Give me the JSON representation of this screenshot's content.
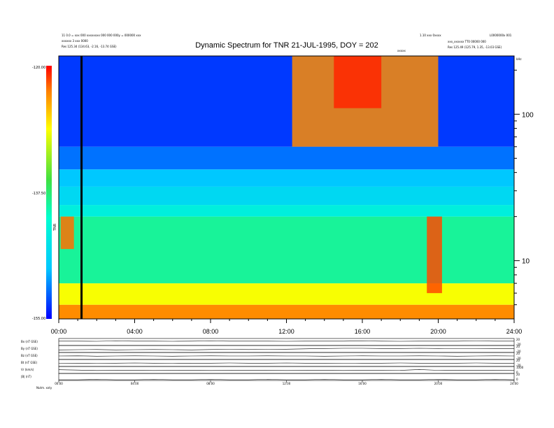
{
  "chart_data": [
    {
      "type": "heatmap",
      "title": "Dynamic Spectrum for TNR 21-JUL-1995, DOY = 202",
      "header_left": [
        "11 0.0 = xxx 000 xxxxxxxx 000 000 000y = 000000 xxx",
        "xxxxxx 3 xxx 0000",
        "Res  125.34 (134.63, -2.16, -13.74 GSE)"
      ],
      "header_right": [
        "1.10 xxx 0xxxx",
        "L0000000x 001",
        "xxx_xxxxxx  TT0 00000 000",
        "Res   125.49 (125.79, 1.35, -13.03 GSE)"
      ],
      "marker_label": "xxxxx",
      "right_unit": "kHz",
      "colorbar_label": "TNR",
      "colorbar_ticks": [
        "-120.00",
        "-137.50",
        "-155.00"
      ],
      "colorbar_range": [
        -155,
        -120
      ],
      "x_ticks": [
        "00:00",
        "04:00",
        "08:00",
        "12:00",
        "16:00",
        "20:00",
        "24:00"
      ],
      "x_range_hours": [
        0,
        24
      ],
      "y_scale": "log",
      "y_ticks": [
        "100",
        "10"
      ],
      "y_range_khz": [
        4,
        250
      ],
      "vertical_marker_hour": 1.2,
      "bands_khz": [
        {
          "from": 4,
          "to": 5,
          "level": -124
        },
        {
          "from": 5,
          "to": 7,
          "level": -129
        },
        {
          "from": 7,
          "to": 20,
          "level": -139
        },
        {
          "from": 20,
          "to": 24,
          "level": -143
        },
        {
          "from": 24,
          "to": 32,
          "level": -146
        },
        {
          "from": 32,
          "to": 42,
          "level": -148
        },
        {
          "from": 42,
          "to": 60,
          "level": -151
        },
        {
          "from": 60,
          "to": 250,
          "level": -153
        }
      ],
      "events": [
        {
          "start_hour": 12.3,
          "end_hour": 20.0,
          "from_khz": 60,
          "to_khz": 250,
          "level": -124
        },
        {
          "start_hour": 14.5,
          "end_hour": 17.0,
          "from_khz": 110,
          "to_khz": 250,
          "level": -121
        },
        {
          "start_hour": 19.4,
          "end_hour": 20.2,
          "from_khz": 6,
          "to_khz": 20,
          "level": -122
        },
        {
          "start_hour": 0.1,
          "end_hour": 0.8,
          "from_khz": 12,
          "to_khz": 20,
          "level": -123
        }
      ]
    },
    {
      "type": "line",
      "panels": [
        {
          "label": "Bx (nT GSE)",
          "right_ticks": [
            "20",
            "-20"
          ],
          "values": [
            5,
            5,
            4,
            6,
            5,
            5,
            4,
            5,
            6,
            5,
            5,
            5,
            4,
            5,
            5,
            5,
            6,
            5,
            4,
            5,
            5,
            5,
            6,
            5,
            5
          ]
        },
        {
          "label": "By (nT GSE)",
          "right_ticks": [
            "20",
            "-20"
          ],
          "values": [
            -5,
            -4,
            -3,
            -5,
            -4,
            -3,
            -4,
            -5,
            -3,
            -2,
            -3,
            -2,
            -1,
            1,
            3,
            4,
            4,
            3,
            3,
            4,
            3,
            2,
            2,
            3,
            3
          ]
        },
        {
          "label": "Bz (nT GSE)",
          "right_ticks": [
            "20",
            "-20"
          ],
          "values": [
            0,
            1,
            -1,
            0,
            1,
            0,
            -1,
            0,
            1,
            0,
            0,
            1,
            0,
            0,
            -1,
            0,
            1,
            0,
            0,
            1,
            0,
            -1,
            0,
            1,
            0
          ]
        },
        {
          "label": "Bt (nT GSE)",
          "right_ticks": [
            "20",
            "-20"
          ],
          "values": [
            -2,
            -1,
            -2,
            -1,
            0,
            -1,
            -2,
            -1,
            -1,
            0,
            -1,
            -1,
            0,
            -1,
            -1,
            -2,
            -1,
            -1,
            0,
            -1,
            -1,
            -1,
            0,
            -1,
            -1
          ]
        },
        {
          "label": "Vr (km/s)",
          "right_ticks": [
            "1000",
            "0"
          ],
          "values": [
            530,
            480,
            420,
            430,
            440,
            420,
            430,
            440,
            420,
            430,
            440,
            430,
            420,
            430,
            440,
            420,
            430,
            430,
            440,
            560,
            450,
            430,
            440,
            430,
            420
          ]
        },
        {
          "label": "|B| (nT)",
          "right_ticks": [
            "20",
            "0"
          ],
          "values": [
            2,
            2,
            3,
            2,
            2,
            3,
            2,
            2,
            3,
            2,
            2,
            3,
            2,
            2,
            3,
            2,
            2,
            3,
            2,
            2,
            3,
            2,
            2,
            3,
            2
          ]
        }
      ],
      "x_ticks": [
        "00:00",
        "04:00",
        "08:00",
        "12:00",
        "16:00",
        "20:00",
        "24:00"
      ],
      "footer_label": "Nutm.  xxty"
    }
  ]
}
